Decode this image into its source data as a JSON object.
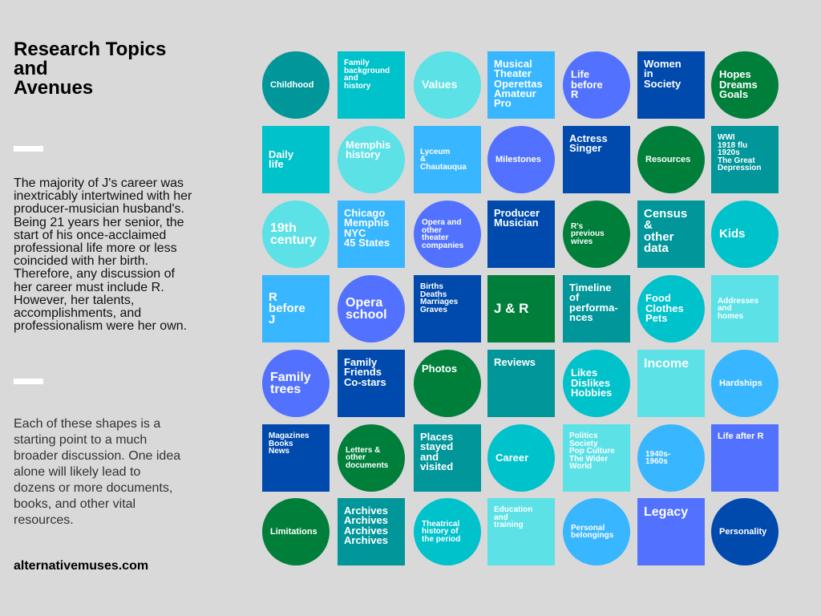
{
  "sidebar": {
    "title": "Research Topics\nand\nAvenues",
    "paragraph1": "The majority of J's career was inextricably intertwined with her producer-musician husband's. Being 21 years her senior, the start of his once-acclaimed professional life more or less coincided with her birth. Therefore, any discussion of her career must include R. However, her talents, accomplishments, and professionalism were her own.",
    "paragraph2": "Each of these shapes is a starting point to a much broader discussion. One idea alone will likely lead to dozens or more documents, books, and other vital resources.",
    "website": "alternativemuses.com"
  },
  "colors": {
    "T": "#00969a",
    "C": "#00c2cb",
    "L": "#5ce1e6",
    "S": "#38b6ff",
    "P": "#5271ff",
    "D": "#004aad",
    "G": "#007f3a"
  },
  "topics": [
    [
      {
        "shape": "circle",
        "color": "T",
        "label": "Childhood"
      },
      {
        "shape": "square",
        "color": "C",
        "label": "Family\nbackground\nand\nhistory"
      },
      {
        "shape": "circle",
        "color": "L",
        "label": "Values"
      },
      {
        "shape": "square",
        "color": "S",
        "label": "Musical\nTheater\nOperettas\nAmateur\nPro"
      },
      {
        "shape": "circle",
        "color": "P",
        "label": "Life\nbefore\nR"
      },
      {
        "shape": "square",
        "color": "D",
        "label": "Women\nin\nSociety"
      },
      {
        "shape": "circle",
        "color": "G",
        "label": "Hopes\nDreams\nGoals"
      }
    ],
    [
      {
        "shape": "square",
        "color": "C",
        "label": "Daily\nlife"
      },
      {
        "shape": "circle",
        "color": "L",
        "label": "Memphis\nhistory"
      },
      {
        "shape": "square",
        "color": "S",
        "label": "Lyceum\n&\nChautauqua"
      },
      {
        "shape": "circle",
        "color": "P",
        "label": "Milestones"
      },
      {
        "shape": "square",
        "color": "D",
        "label": "Actress\nSinger"
      },
      {
        "shape": "circle",
        "color": "G",
        "label": "Resources"
      },
      {
        "shape": "square",
        "color": "T",
        "label": "WWI\n1918 flu\n1920s\nThe Great\nDepression"
      }
    ],
    [
      {
        "shape": "circle",
        "color": "L",
        "label": "19th\ncentury"
      },
      {
        "shape": "square",
        "color": "S",
        "label": "Chicago\nMemphis\nNYC\n45 States"
      },
      {
        "shape": "circle",
        "color": "P",
        "label": "Opera and\nother\ntheater\ncompanies"
      },
      {
        "shape": "square",
        "color": "D",
        "label": "Producer\nMusician"
      },
      {
        "shape": "circle",
        "color": "G",
        "label": "R's\nprevious\nwives"
      },
      {
        "shape": "square",
        "color": "T",
        "label": "Census\n&\nother\ndata"
      },
      {
        "shape": "circle",
        "color": "C",
        "label": "Kids"
      }
    ],
    [
      {
        "shape": "square",
        "color": "S",
        "label": "R\nbefore\nJ"
      },
      {
        "shape": "circle",
        "color": "P",
        "label": "Opera\nschool"
      },
      {
        "shape": "square",
        "color": "D",
        "label": "Births\nDeaths\nMarriages\nGraves"
      },
      {
        "shape": "square",
        "color": "G",
        "label": "J & R"
      },
      {
        "shape": "square",
        "color": "T",
        "label": "Timeline\nof\nperforma-\nnces"
      },
      {
        "shape": "circle",
        "color": "C",
        "label": "Food\nClothes\nPets"
      },
      {
        "shape": "square",
        "color": "L",
        "label": "Addresses\nand\nhomes"
      }
    ],
    [
      {
        "shape": "circle",
        "color": "P",
        "label": "Family\ntrees"
      },
      {
        "shape": "square",
        "color": "D",
        "label": "Family\nFriends\nCo-stars"
      },
      {
        "shape": "circle",
        "color": "G",
        "label": "Photos"
      },
      {
        "shape": "square",
        "color": "T",
        "label": "Reviews"
      },
      {
        "shape": "circle",
        "color": "C",
        "label": "Likes\nDislikes\nHobbies"
      },
      {
        "shape": "square",
        "color": "L",
        "label": "Income"
      },
      {
        "shape": "circle",
        "color": "S",
        "label": "Hardships"
      }
    ],
    [
      {
        "shape": "square",
        "color": "D",
        "label": "Magazines\nBooks\nNews"
      },
      {
        "shape": "circle",
        "color": "G",
        "label": "Letters &\nother\ndocuments"
      },
      {
        "shape": "square",
        "color": "T",
        "label": "Places\nstayed\nand\nvisited"
      },
      {
        "shape": "circle",
        "color": "C",
        "label": "Career"
      },
      {
        "shape": "square",
        "color": "L",
        "label": "Politics\nSociety\nPop Culture\nThe Wider\nWorld"
      },
      {
        "shape": "circle",
        "color": "S",
        "label": "1940s-\n1960s"
      },
      {
        "shape": "square",
        "color": "P",
        "label": "Life after R"
      }
    ],
    [
      {
        "shape": "circle",
        "color": "G",
        "label": "Limitations"
      },
      {
        "shape": "square",
        "color": "T",
        "label": "Archives\nArchives\nArchives\nArchives"
      },
      {
        "shape": "circle",
        "color": "C",
        "label": "Theatrical\nhistory of\nthe period"
      },
      {
        "shape": "square",
        "color": "L",
        "label": "Education\nand\ntraining"
      },
      {
        "shape": "circle",
        "color": "S",
        "label": "Personal\nbelongings"
      },
      {
        "shape": "square",
        "color": "P",
        "label": "Legacy"
      },
      {
        "shape": "circle",
        "color": "D",
        "label": "Personality"
      }
    ]
  ]
}
